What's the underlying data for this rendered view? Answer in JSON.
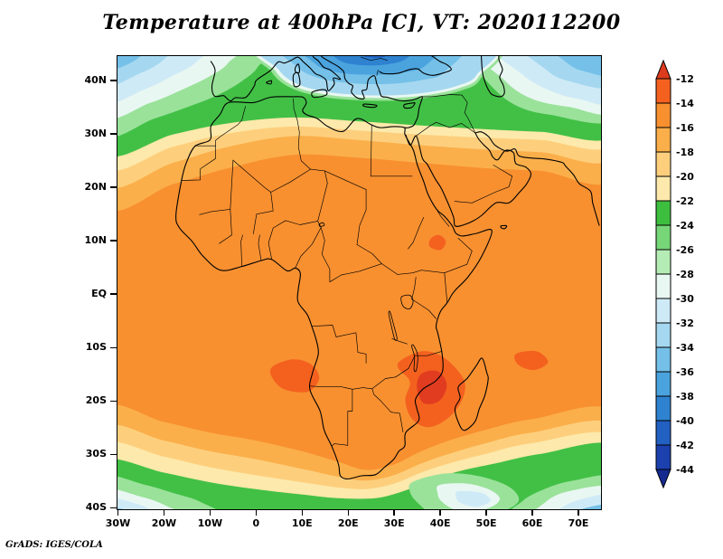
{
  "title": "Temperature at 400hPa [C], VT: 2020112200",
  "credit": "GrADS: IGES/COLA",
  "axes": {
    "lat_ticks": [
      "40N",
      "30N",
      "20N",
      "10N",
      "EQ",
      "10S",
      "20S",
      "30S",
      "40S"
    ],
    "lon_ticks": [
      "30W",
      "20W",
      "10W",
      "0",
      "10E",
      "20E",
      "30E",
      "40E",
      "50E",
      "60E",
      "70E"
    ]
  },
  "colorbar": {
    "unit": "C",
    "labels": [
      "-12",
      "-14",
      "-16",
      "-18",
      "-20",
      "-22",
      "-24",
      "-26",
      "-28",
      "-30",
      "-32",
      "-34",
      "-36",
      "-38",
      "-40",
      "-42",
      "-44"
    ],
    "cap_top_color": "#dd3b1e",
    "cap_bottom_color": "#152a90",
    "segment_colors": [
      "#f4611f",
      "#f89030",
      "#fbaf4a",
      "#fdcf7d",
      "#fde9ab",
      "#3ebe3e",
      "#77d677",
      "#b5ecb5",
      "#e9f7f2",
      "#cfeaf7",
      "#a5d8f0",
      "#74c0e8",
      "#4ba3de",
      "#2e82d0",
      "#2260c2",
      "#1c40ae"
    ]
  },
  "chart_data": {
    "type": "heatmap",
    "title": "Temperature at 400hPa [C], VT: 2020112200",
    "variable": "Temperature",
    "level": "400hPa",
    "units": "C",
    "valid_time_label": "VT: 2020112200",
    "lon_range": [
      -30,
      75
    ],
    "lat_range": [
      -40,
      45
    ],
    "x_tick_labels": [
      "30W",
      "20W",
      "10W",
      "0",
      "10E",
      "20E",
      "30E",
      "40E",
      "50E",
      "60E",
      "70E"
    ],
    "y_tick_labels": [
      "40N",
      "30N",
      "20N",
      "10N",
      "EQ",
      "10S",
      "20S",
      "30S",
      "40S"
    ],
    "contour_interval": 2,
    "contour_levels": [
      -44,
      -42,
      -40,
      -38,
      -36,
      -34,
      -32,
      -30,
      -28,
      -26,
      -24,
      -22,
      -20,
      -18,
      -16,
      -14,
      -12
    ],
    "legend_position": "right",
    "field_features": [
      {
        "area": "most of Africa, tropical Atlantic and Indian Ocean",
        "approx_range_c": "-16 to -14"
      },
      {
        "area": "Mozambique Channel / Madagascar",
        "approx_range_c": "-14 to -12"
      },
      {
        "area": "SE Atlantic off Angola (near 9E, 15S)",
        "approx_range_c": "-14 to -12"
      },
      {
        "area": "west Indian Ocean (near 60E, 12S)",
        "approx_range_c": "-14 to -12"
      },
      {
        "area": "Ethiopian highlands (near 40E, 10N)",
        "approx_range_c": "-14 to -12"
      },
      {
        "area": "Sahara northern edge to Mediterranean coast",
        "approx_range_c": "-26 to -18"
      },
      {
        "area": "southeast Europe, Black Sea and Turkey (cold core)",
        "approx_range_c": "-40 to -28"
      },
      {
        "area": "northeast Atlantic and Iberia",
        "approx_range_c": "-36 to -26"
      },
      {
        "area": "Southern Ocean band (33S-40S)",
        "approx_range_c": "-28 to -18"
      },
      {
        "area": "far southwest and southeast corners (about 40S)",
        "approx_range_c": "-38 to -28"
      }
    ]
  }
}
